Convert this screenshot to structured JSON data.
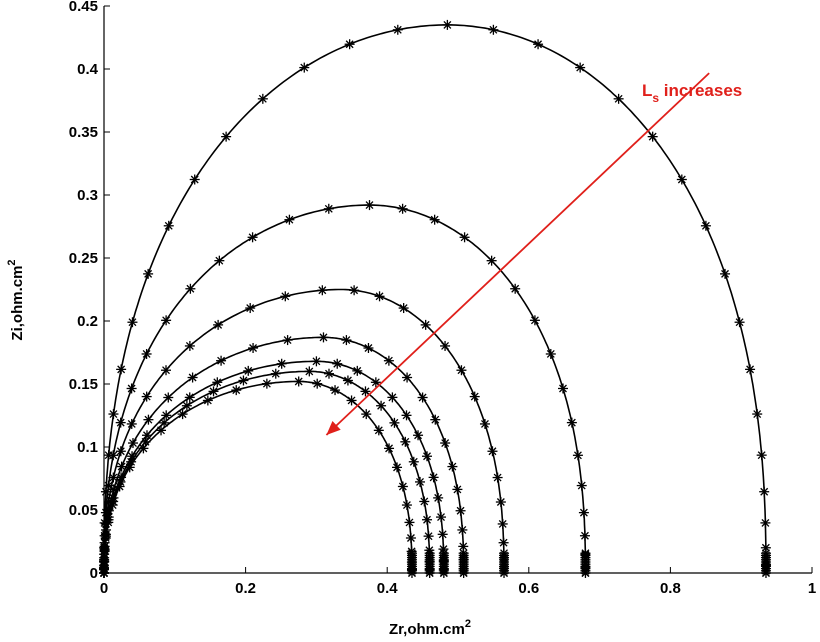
{
  "chart_data": {
    "type": "line",
    "title": "",
    "xlabel": "Zr,ohm.cm",
    "xlabel_sup": "2",
    "ylabel": "Zi,ohm.cm",
    "ylabel_sup": "2",
    "xlim": [
      0,
      1
    ],
    "ylim": [
      0,
      0.45
    ],
    "x_ticks": [
      "0",
      "0.2",
      "0.4",
      "0.6",
      "0.8",
      "1"
    ],
    "y_ticks": [
      "0",
      "0.05",
      "0.1",
      "0.15",
      "0.2",
      "0.25",
      "0.3",
      "0.35",
      "0.4",
      "0.45"
    ],
    "grid": false,
    "marker": "asterisk",
    "annotation": {
      "text": "L",
      "sub": "s",
      "rest": " increases",
      "color": "#e0201b",
      "arrow_from": [
        0.77,
        0.365
      ],
      "arrow_to": [
        0.3,
        0.1
      ]
    },
    "series": [
      {
        "x_end": 0.935,
        "peak": [
          0.485,
          0.435
        ],
        "points": 34
      },
      {
        "x_end": 0.68,
        "peak": [
          0.375,
          0.292
        ],
        "points": 32
      },
      {
        "x_end": 0.565,
        "peak": [
          0.335,
          0.225
        ],
        "points": 31
      },
      {
        "x_end": 0.508,
        "peak": [
          0.31,
          0.187
        ],
        "points": 30
      },
      {
        "x_end": 0.48,
        "peak": [
          0.3,
          0.168
        ],
        "points": 30
      },
      {
        "x_end": 0.46,
        "peak": [
          0.29,
          0.16
        ],
        "points": 30
      },
      {
        "x_end": 0.435,
        "peak": [
          0.275,
          0.152
        ],
        "points": 30
      }
    ]
  }
}
